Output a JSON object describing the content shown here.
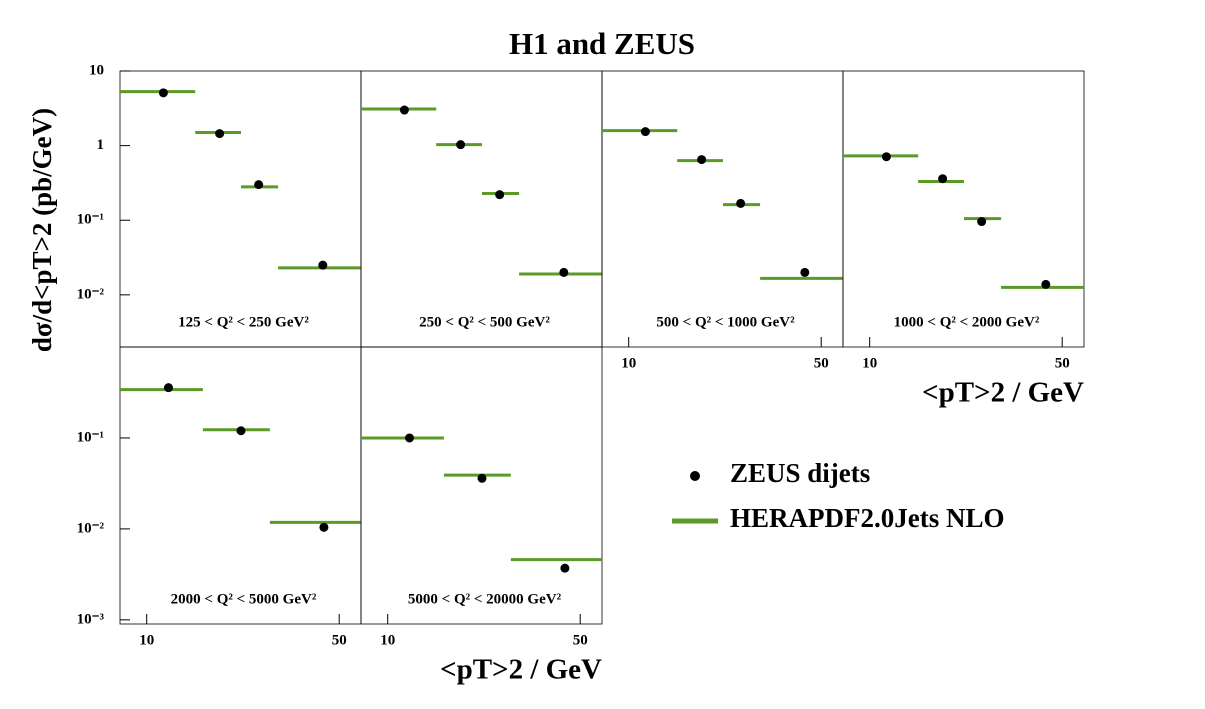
{
  "chart_data": [
    {
      "type": "binned",
      "title": "H1 and ZEUS",
      "y_label": "dσ/d<pT>2 (pb/GeV)",
      "annotation": "125 < Q² < 250 GeV²",
      "xlim": [
        8,
        60
      ],
      "ylim": [
        0.002,
        10
      ],
      "log_x": true,
      "log_y": true,
      "yticks": [
        10,
        1,
        {
          "value": 0.1,
          "label": "10⁻¹"
        },
        {
          "value": 0.01,
          "label": "10⁻²"
        }
      ],
      "bins": [
        8,
        15,
        22,
        30,
        60
      ],
      "x": [
        11.5,
        18.4,
        25.5,
        43.6
      ],
      "series": [
        {
          "name": "ZEUS dijets",
          "color": "#000000",
          "values": [
            5.1,
            1.45,
            0.3,
            0.025
          ]
        },
        {
          "name": "HERAPDF2.0Jets NLO",
          "color": "#5b9a27",
          "values": [
            5.3,
            1.5,
            0.28,
            0.023
          ]
        }
      ]
    },
    {
      "type": "binned",
      "annotation": "250 < Q² < 500 GeV²",
      "xlim": [
        8,
        60
      ],
      "ylim": [
        0.002,
        10
      ],
      "log_x": true,
      "log_y": true,
      "bins": [
        8,
        15,
        22,
        30,
        60
      ],
      "x": [
        11.5,
        18.4,
        25.5,
        43.6
      ],
      "series": [
        {
          "color": "#000000",
          "values": [
            3.0,
            1.03,
            0.22,
            0.02
          ]
        },
        {
          "color": "#5b9a27",
          "values": [
            3.1,
            1.03,
            0.228,
            0.019
          ]
        }
      ]
    },
    {
      "type": "binned",
      "annotation": "500 < Q² < 1000 GeV²",
      "xlim": [
        8,
        60
      ],
      "ylim": [
        0.002,
        10
      ],
      "log_x": true,
      "log_y": true,
      "xticks": [
        10,
        50
      ],
      "bins": [
        8,
        15,
        22,
        30,
        60
      ],
      "x": [
        11.5,
        18.4,
        25.5,
        43.6
      ],
      "series": [
        {
          "color": "#000000",
          "values": [
            1.54,
            0.65,
            0.168,
            0.02
          ]
        },
        {
          "color": "#5b9a27",
          "values": [
            1.59,
            0.63,
            0.162,
            0.0166
          ]
        }
      ]
    },
    {
      "type": "binned",
      "annotation": "1000 < Q² < 2000 GeV²",
      "x_label": "<pT>2 / GeV",
      "xlim": [
        8,
        60
      ],
      "ylim": [
        0.002,
        10
      ],
      "log_x": true,
      "log_y": true,
      "xticks": [
        10,
        50
      ],
      "bins": [
        8,
        15,
        22,
        30,
        60
      ],
      "x": [
        11.5,
        18.4,
        25.5,
        43.6
      ],
      "series": [
        {
          "color": "#000000",
          "values": [
            0.71,
            0.36,
            0.096,
            0.0138
          ]
        },
        {
          "color": "#5b9a27",
          "values": [
            0.73,
            0.33,
            0.105,
            0.0126
          ]
        }
      ]
    },
    {
      "type": "binned",
      "annotation": "2000 < Q² < 5000 GeV²",
      "xlim": [
        8,
        60
      ],
      "ylim": [
        0.0009,
        1
      ],
      "log_x": true,
      "log_y": true,
      "xticks": [
        10,
        50
      ],
      "yticks": [
        {
          "value": 0.1,
          "label": "10⁻¹"
        },
        {
          "value": 0.01,
          "label": "10⁻²"
        },
        {
          "value": 0.001,
          "label": "10⁻³"
        }
      ],
      "bins": [
        8,
        16,
        28,
        60
      ],
      "x": [
        12,
        22,
        44
      ],
      "series": [
        {
          "color": "#000000",
          "values": [
            0.357,
            0.12,
            0.0104
          ]
        },
        {
          "color": "#5b9a27",
          "values": [
            0.34,
            0.123,
            0.0118
          ]
        }
      ]
    },
    {
      "type": "binned",
      "annotation": "5000 < Q² < 20000 GeV²",
      "x_label": "<pT>2 / GeV",
      "xlim": [
        8,
        60
      ],
      "ylim": [
        0.0009,
        1
      ],
      "log_x": true,
      "log_y": true,
      "xticks": [
        10,
        50
      ],
      "bins": [
        8,
        16,
        28,
        60
      ],
      "x": [
        12,
        22,
        44
      ],
      "series": [
        {
          "color": "#000000",
          "values": [
            0.1,
            0.036,
            0.0037
          ]
        },
        {
          "color": "#5b9a27",
          "values": [
            0.1,
            0.039,
            0.0046
          ]
        }
      ]
    }
  ]
}
